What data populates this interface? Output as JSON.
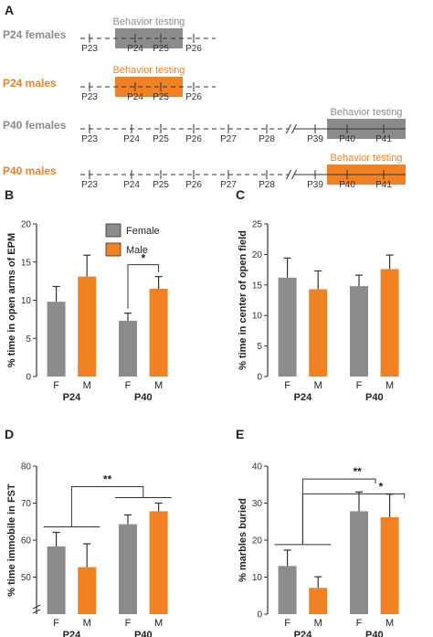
{
  "colors": {
    "female": "#8c8c8c",
    "male": "#f08224",
    "axis": "#333333",
    "text": "#222222"
  },
  "panel_a": {
    "label": "A",
    "box_label": "Behavior testing",
    "rows": [
      {
        "name": "P24 females",
        "color": "#8c8c8c",
        "days": [
          "P23",
          "P24",
          "P25",
          "P26"
        ],
        "highlight": [
          "P24",
          "P25"
        ],
        "break_before": null
      },
      {
        "name": "P24 males",
        "color": "#f08224",
        "days": [
          "P23",
          "P24",
          "P25",
          "P26"
        ],
        "highlight": [
          "P24",
          "P25"
        ],
        "break_before": null
      },
      {
        "name": "P40 females",
        "color": "#8c8c8c",
        "days": [
          "P23",
          "P24",
          "P25",
          "P26",
          "P27",
          "P28",
          "P39",
          "P40",
          "P41"
        ],
        "highlight": [
          "P40",
          "P41"
        ],
        "break_before": "P39"
      },
      {
        "name": "P40 males",
        "color": "#f08224",
        "days": [
          "P23",
          "P24",
          "P25",
          "P26",
          "P27",
          "P28",
          "P39",
          "P40",
          "P41"
        ],
        "highlight": [
          "P40",
          "P41"
        ],
        "break_before": "P39"
      }
    ]
  },
  "chart_data": [
    {
      "panel": "B",
      "type": "bar",
      "ylabel": "% time in open arms of EPM",
      "ylim": [
        0,
        20
      ],
      "yticks": [
        0,
        5,
        10,
        15,
        20
      ],
      "groups": [
        "P24",
        "P40"
      ],
      "categories": [
        "F",
        "M"
      ],
      "legend": [
        "Female",
        "Male"
      ],
      "legend_position": "top-left",
      "series": [
        {
          "name": "Female",
          "values": [
            9.8,
            7.3
          ],
          "errors": [
            2.0,
            1.0
          ]
        },
        {
          "name": "Male",
          "values": [
            13.1,
            11.5
          ],
          "errors": [
            2.8,
            1.6
          ]
        }
      ],
      "significance": [
        {
          "label": "*",
          "type": "within",
          "group": 1
        }
      ]
    },
    {
      "panel": "C",
      "type": "bar",
      "ylabel": "% time in center of open field",
      "ylim": [
        0,
        25
      ],
      "yticks": [
        0,
        5,
        10,
        15,
        20,
        25
      ],
      "groups": [
        "P24",
        "P40"
      ],
      "categories": [
        "F",
        "M"
      ],
      "series": [
        {
          "values": [
            16.2,
            14.8
          ],
          "errors": [
            3.2,
            1.8
          ]
        },
        {
          "values": [
            14.3,
            17.6
          ],
          "errors": [
            3.0,
            2.3
          ]
        }
      ],
      "significance": []
    },
    {
      "panel": "D",
      "type": "bar",
      "ylabel": "% time immobile in FST",
      "ylim": [
        40,
        80
      ],
      "yticks": [
        50,
        60,
        70,
        80
      ],
      "axis_break": true,
      "groups": [
        "P24",
        "P40"
      ],
      "categories": [
        "F",
        "M"
      ],
      "series": [
        {
          "values": [
            58.3,
            64.3
          ],
          "errors": [
            3.8,
            2.5
          ]
        },
        {
          "values": [
            52.7,
            67.8
          ],
          "errors": [
            6.3,
            2.2
          ]
        }
      ],
      "significance": [
        {
          "label": "**",
          "type": "between"
        }
      ]
    },
    {
      "panel": "E",
      "type": "bar",
      "ylabel": "% marbles buried",
      "ylim": [
        0,
        40
      ],
      "yticks": [
        0,
        10,
        20,
        30,
        40
      ],
      "groups": [
        "P24",
        "P40"
      ],
      "categories": [
        "F",
        "M"
      ],
      "series": [
        {
          "values": [
            13.0,
            27.8
          ],
          "errors": [
            4.3,
            5.2
          ]
        },
        {
          "values": [
            7.1,
            26.2
          ],
          "errors": [
            3.0,
            6.2
          ]
        }
      ],
      "significance": [
        {
          "label": "**",
          "type": "between",
          "target": 0
        },
        {
          "label": "*",
          "type": "between",
          "target": 1
        }
      ]
    }
  ]
}
